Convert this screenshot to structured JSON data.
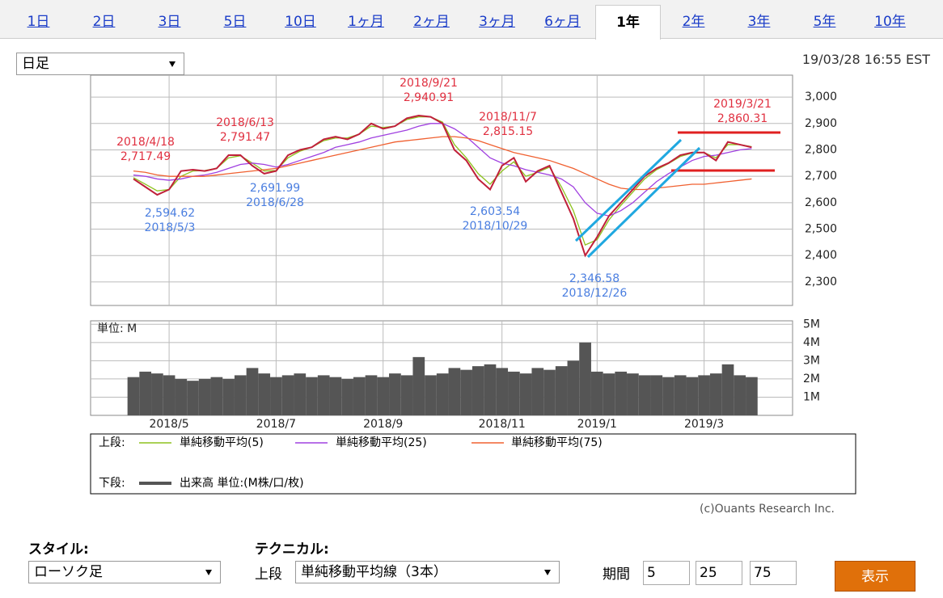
{
  "tabs": [
    {
      "label": "1日"
    },
    {
      "label": "2日"
    },
    {
      "label": "3日"
    },
    {
      "label": "5日"
    },
    {
      "label": "10日"
    },
    {
      "label": "1ヶ月"
    },
    {
      "label": "2ヶ月"
    },
    {
      "label": "3ヶ月"
    },
    {
      "label": "6ヶ月"
    },
    {
      "label": "1年",
      "selected": true
    },
    {
      "label": "2年"
    },
    {
      "label": "3年"
    },
    {
      "label": "5年"
    },
    {
      "label": "10年"
    }
  ],
  "period_select": "日足",
  "timestamp": "19/03/28 16:55 EST",
  "legend": {
    "upper": "上段:",
    "lower": "下段:"
  },
  "copyright": "(c)Ouants Research Inc.",
  "form": {
    "style_label": "スタイル:",
    "style_value": "ローソク足",
    "technical_label": "テクニカル:",
    "upper_label": "上段",
    "technical_value": "単純移動平均線（3本）",
    "period_label": "期間",
    "periods": [
      "5",
      "25",
      "75"
    ],
    "submit": "表示"
  },
  "chart_data": [
    {
      "type": "line",
      "ylim": [
        2211,
        3083
      ],
      "yticks": [
        {
          "value": 2300,
          "label": "2,300"
        },
        {
          "value": 2400,
          "label": "2,400"
        },
        {
          "value": 2500,
          "label": "2,500"
        },
        {
          "value": 2600,
          "label": "2,600"
        },
        {
          "value": 2700,
          "label": "2,700"
        },
        {
          "value": 2800,
          "label": "2,800"
        },
        {
          "value": 2900,
          "label": "2,900"
        },
        {
          "value": 3000,
          "label": "3,000"
        }
      ],
      "grid": true,
      "series": [
        {
          "color": "#c0203a",
          "values": [
            2690,
            2660,
            2630,
            2650,
            2720,
            2725,
            2720,
            2730,
            2780,
            2780,
            2740,
            2710,
            2720,
            2780,
            2800,
            2810,
            2840,
            2850,
            2840,
            2860,
            2900,
            2880,
            2890,
            2920,
            2930,
            2925,
            2900,
            2800,
            2760,
            2690,
            2650,
            2740,
            2770,
            2680,
            2720,
            2740,
            2640,
            2540,
            2400,
            2470,
            2550,
            2600,
            2650,
            2700,
            2730,
            2750,
            2780,
            2790,
            2790,
            2760,
            2830,
            2820,
            2810
          ]
        },
        {
          "name": "単純移動平均(5)",
          "color": "#8ec21f",
          "values": [
            2695,
            2670,
            2645,
            2650,
            2700,
            2720,
            2722,
            2730,
            2770,
            2778,
            2750,
            2720,
            2722,
            2770,
            2795,
            2810,
            2835,
            2845,
            2845,
            2860,
            2890,
            2885,
            2890,
            2915,
            2925,
            2925,
            2905,
            2820,
            2770,
            2710,
            2670,
            2720,
            2755,
            2700,
            2715,
            2735,
            2660,
            2570,
            2440,
            2460,
            2535,
            2590,
            2640,
            2690,
            2725,
            2748,
            2775,
            2788,
            2790,
            2770,
            2820,
            2820,
            2812
          ]
        },
        {
          "name": "単純移動平均(25)",
          "color": "#a040e0",
          "values": [
            2705,
            2700,
            2690,
            2685,
            2690,
            2700,
            2705,
            2715,
            2730,
            2745,
            2750,
            2745,
            2735,
            2745,
            2760,
            2775,
            2790,
            2810,
            2820,
            2830,
            2845,
            2855,
            2865,
            2875,
            2890,
            2900,
            2900,
            2880,
            2850,
            2810,
            2770,
            2750,
            2740,
            2725,
            2715,
            2705,
            2690,
            2660,
            2600,
            2560,
            2550,
            2570,
            2600,
            2640,
            2680,
            2710,
            2735,
            2760,
            2775,
            2780,
            2790,
            2800,
            2805
          ]
        },
        {
          "name": "単純移動平均(75)",
          "color": "#f06030",
          "values": [
            2720,
            2715,
            2705,
            2700,
            2700,
            2700,
            2700,
            2705,
            2710,
            2715,
            2720,
            2725,
            2730,
            2740,
            2750,
            2760,
            2770,
            2780,
            2790,
            2800,
            2810,
            2820,
            2830,
            2835,
            2840,
            2845,
            2850,
            2850,
            2845,
            2835,
            2820,
            2805,
            2790,
            2780,
            2770,
            2760,
            2745,
            2730,
            2710,
            2690,
            2670,
            2655,
            2650,
            2650,
            2655,
            2660,
            2665,
            2670,
            2670,
            2675,
            2680,
            2685,
            2690
          ]
        }
      ],
      "annotations": [
        {
          "date": "2018/4/18",
          "price": "2,717.49",
          "color": "#e03040"
        },
        {
          "date": "2018/6/13",
          "price": "2,791.47",
          "color": "#e03040"
        },
        {
          "date": "2018/9/21",
          "price": "2,940.91",
          "color": "#e03040"
        },
        {
          "date": "2018/11/7",
          "price": "2,815.15",
          "color": "#e03040"
        },
        {
          "date": "2019/3/21",
          "price": "2,860.31",
          "color": "#e03040"
        },
        {
          "date": "2018/5/3",
          "price": "2,594.62",
          "color": "#4a7ee0"
        },
        {
          "date": "2018/6/28",
          "price": "2,691.99",
          "color": "#4a7ee0"
        },
        {
          "date": "2018/10/29",
          "price": "2,603.54",
          "color": "#4a7ee0"
        },
        {
          "date": "2018/12/26",
          "price": "2,346.58",
          "color": "#4a7ee0"
        }
      ]
    },
    {
      "type": "bar",
      "unit_label": "単位: M",
      "ylim": [
        0,
        5.19
      ],
      "yticks": [
        {
          "value": 1,
          "label": "1M"
        },
        {
          "value": 2,
          "label": "2M"
        },
        {
          "value": 3,
          "label": "3M"
        },
        {
          "value": 4,
          "label": "4M"
        },
        {
          "value": 5,
          "label": "5M"
        }
      ],
      "categories": [
        null,
        null,
        null,
        "2018/5",
        null,
        null,
        null,
        null,
        null,
        null,
        null,
        null,
        "2018/7",
        null,
        null,
        null,
        null,
        null,
        null,
        null,
        null,
        "2018/9",
        null,
        null,
        null,
        null,
        null,
        null,
        null,
        null,
        null,
        "2018/11",
        null,
        null,
        null,
        null,
        null,
        null,
        null,
        "2019/1",
        null,
        null,
        null,
        null,
        null,
        null,
        null,
        null,
        "2019/3",
        null,
        null,
        null,
        null
      ],
      "series": [
        {
          "name": "出来高 単位:(M株/口/枚)",
          "color": "#555555",
          "values": [
            2.1,
            2.4,
            2.3,
            2.2,
            2.0,
            1.9,
            2.0,
            2.1,
            2.0,
            2.2,
            2.6,
            2.3,
            2.1,
            2.2,
            2.3,
            2.1,
            2.2,
            2.1,
            2.0,
            2.1,
            2.2,
            2.1,
            2.3,
            2.2,
            3.2,
            2.2,
            2.3,
            2.6,
            2.5,
            2.7,
            2.8,
            2.6,
            2.4,
            2.3,
            2.6,
            2.5,
            2.7,
            3.0,
            4.0,
            2.4,
            2.3,
            2.4,
            2.3,
            2.2,
            2.2,
            2.1,
            2.2,
            2.1,
            2.2,
            2.3,
            2.8,
            2.2,
            2.1
          ]
        }
      ]
    }
  ]
}
